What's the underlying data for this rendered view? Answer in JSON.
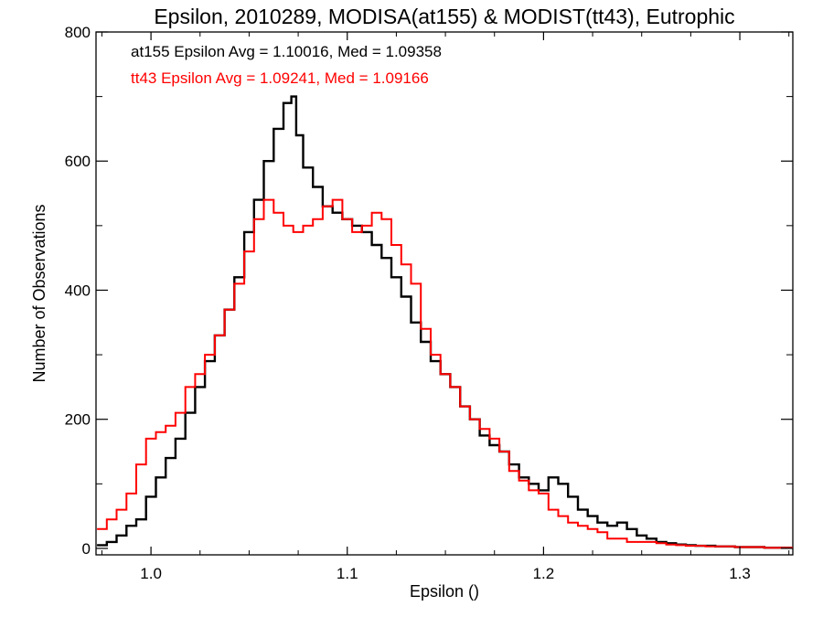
{
  "chart_data": {
    "type": "line",
    "style": "step-histogram",
    "title": "Epsilon, 2010289, MODISA(at155) & MODIST(tt43), Eutrophic",
    "xlabel": "Epsilon ()",
    "ylabel": "Number of Observations",
    "xlim": [
      0.972,
      1.327
    ],
    "ylim": [
      -10,
      800
    ],
    "x_ticks": [
      1.0,
      1.1,
      1.2,
      1.3
    ],
    "x_tick_labels": [
      "1.0",
      "1.1",
      "1.2",
      "1.3"
    ],
    "y_ticks": [
      0,
      200,
      400,
      600,
      800
    ],
    "y_tick_labels": [
      "0",
      "200",
      "400",
      "600",
      "800"
    ],
    "grid": false,
    "annotations": [
      {
        "text": "at155 Epsilon Avg = 1.10016, Med = 1.09358",
        "color": "#000000"
      },
      {
        "text": "tt43 Epsilon Avg = 1.09241, Med = 1.09166",
        "color": "#ff0000"
      }
    ],
    "series": [
      {
        "color": "#000000",
        "x": [
          0.975,
          0.98,
          0.985,
          0.99,
          0.995,
          1.0,
          1.005,
          1.01,
          1.015,
          1.02,
          1.025,
          1.03,
          1.035,
          1.04,
          1.045,
          1.05,
          1.055,
          1.06,
          1.065,
          1.07,
          1.073,
          1.075,
          1.08,
          1.085,
          1.09,
          1.095,
          1.1,
          1.105,
          1.11,
          1.115,
          1.12,
          1.125,
          1.13,
          1.135,
          1.14,
          1.145,
          1.15,
          1.155,
          1.16,
          1.165,
          1.17,
          1.175,
          1.18,
          1.185,
          1.19,
          1.195,
          1.2,
          1.205,
          1.21,
          1.215,
          1.22,
          1.225,
          1.23,
          1.235,
          1.24,
          1.245,
          1.25,
          1.255,
          1.26,
          1.265,
          1.27,
          1.275,
          1.28,
          1.285,
          1.29,
          1.295,
          1.3,
          1.305,
          1.31,
          1.315,
          1.32,
          1.325
        ],
        "values": [
          5,
          10,
          20,
          35,
          45,
          80,
          110,
          140,
          170,
          210,
          250,
          290,
          330,
          370,
          420,
          490,
          540,
          600,
          650,
          690,
          700,
          640,
          590,
          560,
          530,
          520,
          510,
          500,
          490,
          470,
          450,
          420,
          390,
          350,
          320,
          290,
          270,
          250,
          220,
          200,
          175,
          160,
          150,
          130,
          110,
          100,
          90,
          110,
          100,
          80,
          60,
          50,
          40,
          35,
          40,
          30,
          20,
          15,
          10,
          8,
          6,
          5,
          4,
          4,
          3,
          3,
          2,
          2,
          2,
          1,
          1,
          1
        ]
      },
      {
        "color": "#ff0000",
        "x": [
          0.975,
          0.98,
          0.985,
          0.99,
          0.995,
          1.0,
          1.005,
          1.01,
          1.015,
          1.02,
          1.025,
          1.03,
          1.035,
          1.04,
          1.045,
          1.05,
          1.055,
          1.06,
          1.065,
          1.07,
          1.075,
          1.08,
          1.085,
          1.09,
          1.095,
          1.1,
          1.105,
          1.11,
          1.115,
          1.12,
          1.125,
          1.13,
          1.135,
          1.14,
          1.145,
          1.15,
          1.155,
          1.16,
          1.165,
          1.17,
          1.175,
          1.18,
          1.185,
          1.19,
          1.195,
          1.2,
          1.205,
          1.21,
          1.215,
          1.22,
          1.225,
          1.23,
          1.235,
          1.24,
          1.245,
          1.25,
          1.255,
          1.26,
          1.265,
          1.27,
          1.275,
          1.28,
          1.285,
          1.29,
          1.295,
          1.3,
          1.305,
          1.31,
          1.315,
          1.32,
          1.325
        ],
        "values": [
          30,
          45,
          60,
          85,
          130,
          170,
          180,
          190,
          210,
          250,
          270,
          300,
          330,
          370,
          410,
          460,
          510,
          540,
          520,
          500,
          490,
          500,
          510,
          530,
          540,
          510,
          490,
          500,
          520,
          510,
          470,
          440,
          410,
          340,
          300,
          270,
          250,
          220,
          200,
          185,
          170,
          150,
          120,
          105,
          90,
          85,
          60,
          50,
          40,
          35,
          30,
          25,
          15,
          15,
          10,
          10,
          10,
          8,
          6,
          5,
          4,
          4,
          3,
          3,
          3,
          2,
          2,
          2,
          1,
          1,
          1
        ]
      }
    ]
  }
}
